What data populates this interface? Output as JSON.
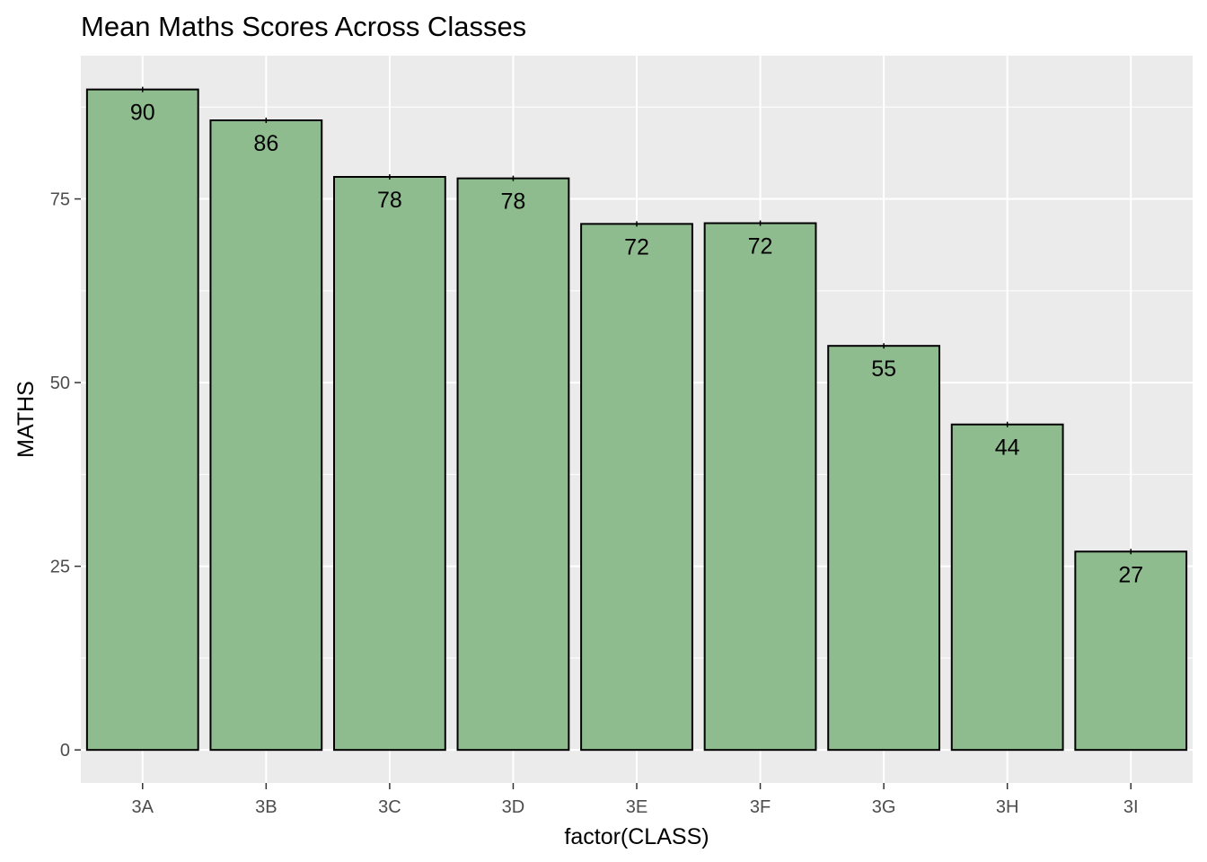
{
  "chart_data": {
    "type": "bar",
    "title": "Mean Maths Scores Across Classes",
    "xlabel": "factor(CLASS)",
    "ylabel": "MATHS",
    "categories": [
      "3A",
      "3B",
      "3C",
      "3D",
      "3E",
      "3F",
      "3G",
      "3H",
      "3I"
    ],
    "values": [
      89.9,
      85.7,
      78.0,
      77.8,
      71.6,
      71.7,
      55.0,
      44.3,
      27.0
    ],
    "labels": [
      "90",
      "86",
      "78",
      "78",
      "72",
      "72",
      "55",
      "44",
      "27"
    ],
    "ylim": [
      -4.5,
      94.5
    ],
    "yticks": [
      0,
      25,
      50,
      75
    ],
    "grid": true,
    "bar_fill": "#8fbc8f",
    "bar_stroke": "#000000",
    "panel_background": "#ebebeb",
    "grid_color": "#ffffff"
  }
}
